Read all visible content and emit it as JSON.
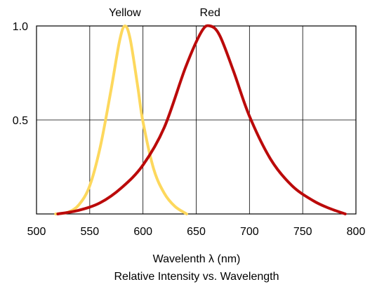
{
  "chart_data": {
    "type": "line",
    "xlabel": "Wavelenth λ (nm)",
    "title": "Relative Intensity vs. Wavelength",
    "xlim": [
      500,
      800
    ],
    "ylim": [
      0,
      1.0
    ],
    "x_ticks": [
      500,
      550,
      600,
      650,
      700,
      750,
      800
    ],
    "y_ticks": [
      0.5,
      1.0
    ],
    "y_tick_labels": [
      "0.5",
      "1.0"
    ],
    "grid": true,
    "series": [
      {
        "name": "Yellow",
        "color": "#fdd85d",
        "label_x": 583,
        "points": [
          [
            518,
            0.0
          ],
          [
            530,
            0.01
          ],
          [
            540,
            0.05
          ],
          [
            550,
            0.15
          ],
          [
            560,
            0.36
          ],
          [
            570,
            0.66
          ],
          [
            578,
            0.92
          ],
          [
            583,
            1.0
          ],
          [
            588,
            0.93
          ],
          [
            595,
            0.68
          ],
          [
            600,
            0.49
          ],
          [
            610,
            0.24
          ],
          [
            620,
            0.11
          ],
          [
            630,
            0.04
          ],
          [
            641,
            0.0
          ]
        ]
      },
      {
        "name": "Red",
        "color": "#bb0a0a",
        "label_x": 663,
        "points": [
          [
            520,
            0.0
          ],
          [
            540,
            0.02
          ],
          [
            560,
            0.06
          ],
          [
            580,
            0.14
          ],
          [
            600,
            0.26
          ],
          [
            620,
            0.46
          ],
          [
            640,
            0.78
          ],
          [
            655,
            0.97
          ],
          [
            663,
            1.0
          ],
          [
            672,
            0.95
          ],
          [
            685,
            0.76
          ],
          [
            700,
            0.52
          ],
          [
            720,
            0.29
          ],
          [
            740,
            0.15
          ],
          [
            760,
            0.07
          ],
          [
            775,
            0.03
          ],
          [
            790,
            0.0
          ]
        ]
      }
    ]
  }
}
